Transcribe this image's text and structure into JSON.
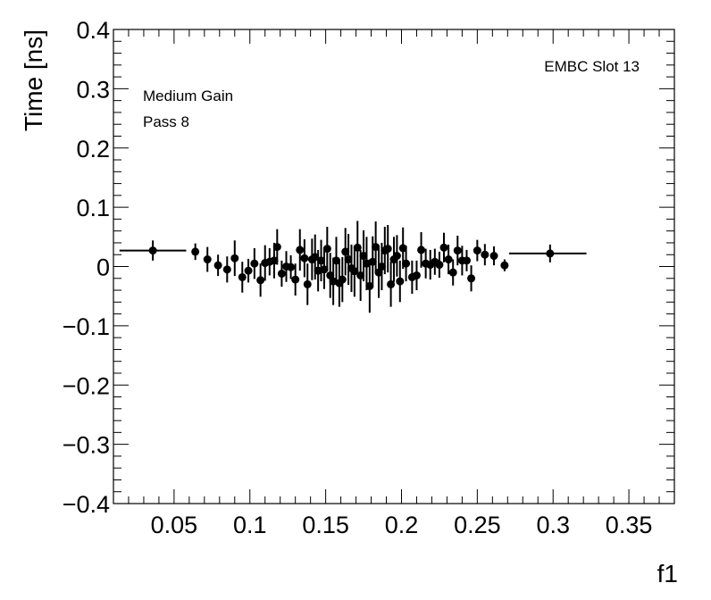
{
  "chart_data": {
    "type": "scatter",
    "xlabel": "f1",
    "ylabel": "Time [ns]",
    "xlim": [
      0.01,
      0.38
    ],
    "ylim": [
      -0.4,
      0.4
    ],
    "x_tick_labels": [
      "0.05",
      "0.1",
      "0.15",
      "0.2",
      "0.25",
      "0.3",
      "0.35"
    ],
    "y_tick_labels": [
      "0.4",
      "0.3",
      "0.2",
      "0.1",
      "0",
      "−0.1",
      "−0.2",
      "−0.3",
      "−0.4"
    ],
    "annotations": {
      "top_right": "EMBC Slot 13",
      "line1": "Medium Gain",
      "line2": "Pass 8"
    },
    "points": [
      {
        "x": 0.036,
        "y": 0.027,
        "xerr_low": 0.022,
        "xerr_high": 0.022,
        "yerr": 0.017
      },
      {
        "x": 0.064,
        "y": 0.025,
        "xerr_low": 0.0,
        "xerr_high": 0.0,
        "yerr": 0.014
      },
      {
        "x": 0.072,
        "y": 0.012,
        "xerr_low": 0.0,
        "xerr_high": 0.0,
        "yerr": 0.021
      },
      {
        "x": 0.079,
        "y": 0.002,
        "xerr_low": 0.0,
        "xerr_high": 0.0,
        "yerr": 0.018
      },
      {
        "x": 0.085,
        "y": -0.005,
        "xerr_low": 0.0,
        "xerr_high": 0.0,
        "yerr": 0.022
      },
      {
        "x": 0.09,
        "y": 0.014,
        "xerr_low": 0.0,
        "xerr_high": 0.0,
        "yerr": 0.03
      },
      {
        "x": 0.095,
        "y": -0.018,
        "xerr_low": 0.0,
        "xerr_high": 0.0,
        "yerr": 0.026
      },
      {
        "x": 0.099,
        "y": -0.007,
        "xerr_low": 0.0,
        "xerr_high": 0.0,
        "yerr": 0.02
      },
      {
        "x": 0.103,
        "y": 0.005,
        "xerr_low": 0.0,
        "xerr_high": 0.0,
        "yerr": 0.026
      },
      {
        "x": 0.107,
        "y": -0.023,
        "xerr_low": 0.0,
        "xerr_high": 0.0,
        "yerr": 0.028
      },
      {
        "x": 0.11,
        "y": 0.006,
        "xerr_low": 0.0,
        "xerr_high": 0.0,
        "yerr": 0.03
      },
      {
        "x": 0.113,
        "y": 0.008,
        "xerr_low": 0.0,
        "xerr_high": 0.0,
        "yerr": 0.023
      },
      {
        "x": 0.116,
        "y": 0.01,
        "xerr_low": 0.0,
        "xerr_high": 0.0,
        "yerr": 0.03
      },
      {
        "x": 0.118,
        "y": 0.033,
        "xerr_low": 0.0,
        "xerr_high": 0.0,
        "yerr": 0.03
      },
      {
        "x": 0.121,
        "y": -0.012,
        "xerr_low": 0.0,
        "xerr_high": 0.0,
        "yerr": 0.022
      },
      {
        "x": 0.124,
        "y": 0.0,
        "xerr_low": 0.0,
        "xerr_high": 0.0,
        "yerr": 0.026
      },
      {
        "x": 0.127,
        "y": -0.001,
        "xerr_low": 0.0,
        "xerr_high": 0.0,
        "yerr": 0.02
      },
      {
        "x": 0.13,
        "y": -0.022,
        "xerr_low": 0.0,
        "xerr_high": 0.0,
        "yerr": 0.027
      },
      {
        "x": 0.133,
        "y": 0.028,
        "xerr_low": 0.0,
        "xerr_high": 0.0,
        "yerr": 0.035
      },
      {
        "x": 0.136,
        "y": 0.014,
        "xerr_low": 0.0,
        "xerr_high": 0.0,
        "yerr": 0.032
      },
      {
        "x": 0.138,
        "y": -0.03,
        "xerr_low": 0.0,
        "xerr_high": 0.0,
        "yerr": 0.035
      },
      {
        "x": 0.141,
        "y": 0.012,
        "xerr_low": 0.0,
        "xerr_high": 0.0,
        "yerr": 0.035
      },
      {
        "x": 0.143,
        "y": 0.016,
        "xerr_low": 0.0,
        "xerr_high": 0.0,
        "yerr": 0.038
      },
      {
        "x": 0.145,
        "y": -0.007,
        "xerr_low": 0.0,
        "xerr_high": 0.0,
        "yerr": 0.035
      },
      {
        "x": 0.147,
        "y": 0.01,
        "xerr_low": 0.0,
        "xerr_high": 0.0,
        "yerr": 0.035
      },
      {
        "x": 0.149,
        "y": -0.005,
        "xerr_low": 0.0,
        "xerr_high": 0.0,
        "yerr": 0.033
      },
      {
        "x": 0.151,
        "y": 0.03,
        "xerr_low": 0.0,
        "xerr_high": 0.0,
        "yerr": 0.037
      },
      {
        "x": 0.153,
        "y": -0.015,
        "xerr_low": 0.0,
        "xerr_high": 0.0,
        "yerr": 0.038
      },
      {
        "x": 0.155,
        "y": -0.025,
        "xerr_low": 0.0,
        "xerr_high": 0.0,
        "yerr": 0.04
      },
      {
        "x": 0.157,
        "y": 0.01,
        "xerr_low": 0.0,
        "xerr_high": 0.0,
        "yerr": 0.04
      },
      {
        "x": 0.159,
        "y": -0.028,
        "xerr_low": 0.0,
        "xerr_high": 0.0,
        "yerr": 0.04
      },
      {
        "x": 0.161,
        "y": -0.022,
        "xerr_low": 0.0,
        "xerr_high": 0.0,
        "yerr": 0.038
      },
      {
        "x": 0.163,
        "y": 0.025,
        "xerr_low": 0.0,
        "xerr_high": 0.0,
        "yerr": 0.04
      },
      {
        "x": 0.165,
        "y": 0.012,
        "xerr_low": 0.0,
        "xerr_high": 0.0,
        "yerr": 0.043
      },
      {
        "x": 0.167,
        "y": -0.003,
        "xerr_low": 0.0,
        "xerr_high": 0.0,
        "yerr": 0.04
      },
      {
        "x": 0.169,
        "y": -0.008,
        "xerr_low": 0.0,
        "xerr_high": 0.0,
        "yerr": 0.043
      },
      {
        "x": 0.171,
        "y": 0.032,
        "xerr_low": 0.0,
        "xerr_high": 0.0,
        "yerr": 0.045
      },
      {
        "x": 0.173,
        "y": -0.015,
        "xerr_low": 0.0,
        "xerr_high": 0.0,
        "yerr": 0.043
      },
      {
        "x": 0.175,
        "y": 0.018,
        "xerr_low": 0.0,
        "xerr_high": 0.0,
        "yerr": 0.043
      },
      {
        "x": 0.177,
        "y": 0.005,
        "xerr_low": 0.0,
        "xerr_high": 0.0,
        "yerr": 0.045
      },
      {
        "x": 0.179,
        "y": -0.033,
        "xerr_low": 0.0,
        "xerr_high": 0.0,
        "yerr": 0.045
      },
      {
        "x": 0.181,
        "y": 0.008,
        "xerr_low": 0.0,
        "xerr_high": 0.0,
        "yerr": 0.043
      },
      {
        "x": 0.183,
        "y": 0.033,
        "xerr_low": 0.0,
        "xerr_high": 0.0,
        "yerr": 0.043
      },
      {
        "x": 0.185,
        "y": -0.01,
        "xerr_low": 0.0,
        "xerr_high": 0.0,
        "yerr": 0.043
      },
      {
        "x": 0.187,
        "y": 0.0,
        "xerr_low": 0.0,
        "xerr_high": 0.0,
        "yerr": 0.04
      },
      {
        "x": 0.189,
        "y": 0.027,
        "xerr_low": 0.0,
        "xerr_high": 0.0,
        "yerr": 0.04
      },
      {
        "x": 0.191,
        "y": 0.03,
        "xerr_low": 0.0,
        "xerr_high": 0.0,
        "yerr": 0.04
      },
      {
        "x": 0.193,
        "y": -0.03,
        "xerr_low": 0.0,
        "xerr_high": 0.0,
        "yerr": 0.038
      },
      {
        "x": 0.195,
        "y": 0.012,
        "xerr_low": 0.0,
        "xerr_high": 0.0,
        "yerr": 0.038
      },
      {
        "x": 0.197,
        "y": 0.018,
        "xerr_low": 0.0,
        "xerr_high": 0.0,
        "yerr": 0.035
      },
      {
        "x": 0.199,
        "y": -0.025,
        "xerr_low": 0.0,
        "xerr_high": 0.0,
        "yerr": 0.035
      },
      {
        "x": 0.201,
        "y": 0.031,
        "xerr_low": 0.0,
        "xerr_high": 0.0,
        "yerr": 0.035
      },
      {
        "x": 0.203,
        "y": 0.005,
        "xerr_low": 0.0,
        "xerr_high": 0.0,
        "yerr": 0.03
      },
      {
        "x": 0.207,
        "y": -0.018,
        "xerr_low": 0.0,
        "xerr_high": 0.0,
        "yerr": 0.028
      },
      {
        "x": 0.21,
        "y": -0.015,
        "xerr_low": 0.0,
        "xerr_high": 0.0,
        "yerr": 0.025
      },
      {
        "x": 0.213,
        "y": 0.028,
        "xerr_low": 0.0,
        "xerr_high": 0.0,
        "yerr": 0.03
      },
      {
        "x": 0.216,
        "y": 0.005,
        "xerr_low": 0.0,
        "xerr_high": 0.0,
        "yerr": 0.025
      },
      {
        "x": 0.219,
        "y": 0.003,
        "xerr_low": 0.0,
        "xerr_high": 0.0,
        "yerr": 0.025
      },
      {
        "x": 0.222,
        "y": 0.008,
        "xerr_low": 0.0,
        "xerr_high": 0.0,
        "yerr": 0.022
      },
      {
        "x": 0.225,
        "y": 0.003,
        "xerr_low": 0.0,
        "xerr_high": 0.0,
        "yerr": 0.022
      },
      {
        "x": 0.228,
        "y": 0.032,
        "xerr_low": 0.0,
        "xerr_high": 0.0,
        "yerr": 0.025
      },
      {
        "x": 0.231,
        "y": 0.012,
        "xerr_low": 0.0,
        "xerr_high": 0.0,
        "yerr": 0.025
      },
      {
        "x": 0.234,
        "y": -0.01,
        "xerr_low": 0.0,
        "xerr_high": 0.0,
        "yerr": 0.022
      },
      {
        "x": 0.237,
        "y": 0.027,
        "xerr_low": 0.0,
        "xerr_high": 0.0,
        "yerr": 0.025
      },
      {
        "x": 0.24,
        "y": 0.01,
        "xerr_low": 0.0,
        "xerr_high": 0.0,
        "yerr": 0.025
      },
      {
        "x": 0.243,
        "y": 0.01,
        "xerr_low": 0.0,
        "xerr_high": 0.0,
        "yerr": 0.018
      },
      {
        "x": 0.246,
        "y": -0.02,
        "xerr_low": 0.0,
        "xerr_high": 0.0,
        "yerr": 0.022
      },
      {
        "x": 0.25,
        "y": 0.027,
        "xerr_low": 0.0,
        "xerr_high": 0.0,
        "yerr": 0.018
      },
      {
        "x": 0.255,
        "y": 0.02,
        "xerr_low": 0.0,
        "xerr_high": 0.0,
        "yerr": 0.018
      },
      {
        "x": 0.261,
        "y": 0.018,
        "xerr_low": 0.0,
        "xerr_high": 0.0,
        "yerr": 0.016
      },
      {
        "x": 0.268,
        "y": 0.002,
        "xerr_low": 0.0,
        "xerr_high": 0.0,
        "yerr": 0.01
      },
      {
        "x": 0.298,
        "y": 0.022,
        "xerr_low": 0.027,
        "xerr_high": 0.024,
        "yerr": 0.015
      }
    ]
  }
}
